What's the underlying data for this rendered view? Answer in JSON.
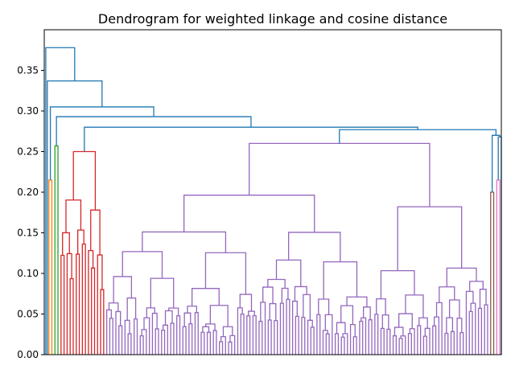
{
  "chart_data": {
    "type": "dendrogram",
    "title": "Dendrogram for weighted linkage and cosine distance",
    "xlabel": "",
    "ylabel": "",
    "ylim": [
      0.0,
      0.4
    ],
    "yticks": [
      0.0,
      0.05,
      0.1,
      0.15,
      0.2,
      0.25,
      0.3,
      0.35
    ],
    "ytick_labels": [
      "0.00",
      "0.05",
      "0.10",
      "0.15",
      "0.20",
      "0.25",
      "0.30",
      "0.35"
    ],
    "grid": false,
    "leaf_count": 150,
    "colors": {
      "above_threshold": "#1f77b4",
      "cluster_orange": "#ff7f0e",
      "cluster_green": "#2ca02c",
      "cluster_red": "#d62728",
      "cluster_purple": "#9467bd",
      "cluster_brown": "#8c564b",
      "cluster_pink": "#e377c2"
    },
    "clusters": [
      {
        "color": "#ff7f0e",
        "leaf_range": [
          1,
          2
        ],
        "merge_height": 0.215
      },
      {
        "color": "#2ca02c",
        "leaf_range": [
          3,
          4
        ],
        "merge_height": 0.257
      },
      {
        "color": "#d62728",
        "leaf_range": [
          5,
          19
        ],
        "merge_height": 0.25
      },
      {
        "color": "#9467bd",
        "leaf_range": [
          20,
          145
        ],
        "merge_height": 0.26
      },
      {
        "color": "#8c564b",
        "leaf_range": [
          146,
          147
        ],
        "merge_height": 0.2
      },
      {
        "color": "#e377c2",
        "leaf_range": [
          148,
          149
        ],
        "merge_height": 0.215
      }
    ],
    "top_merges": [
      {
        "height": 0.378,
        "description": "root"
      },
      {
        "height": 0.337
      },
      {
        "height": 0.305
      },
      {
        "height": 0.293
      },
      {
        "height": 0.28
      },
      {
        "height": 0.277
      },
      {
        "height": 0.27
      },
      {
        "height": 0.268
      }
    ]
  }
}
